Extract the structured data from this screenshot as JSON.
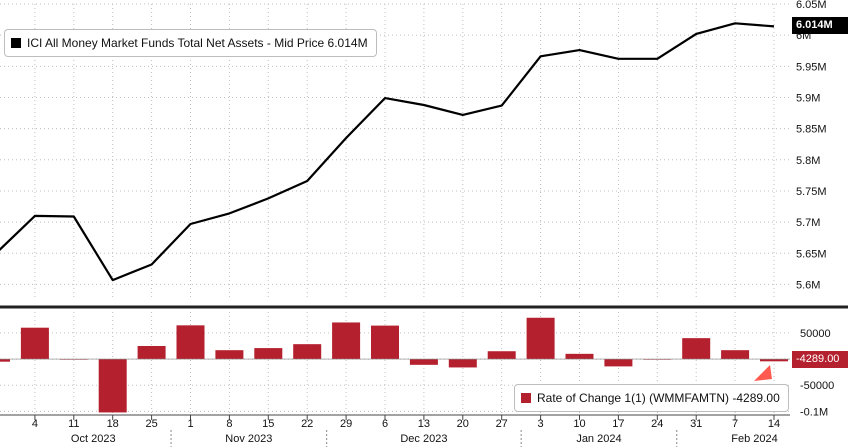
{
  "chart_data": [
    {
      "type": "line",
      "legend_label": "ICI All Money Market Funds Total Net Assets - Mid Price 6.014M",
      "last_value_tag": "6.014M",
      "x": [
        "2023-09-27",
        "2023-10-04",
        "2023-10-11",
        "2023-10-18",
        "2023-10-25",
        "2023-11-01",
        "2023-11-08",
        "2023-11-15",
        "2023-11-22",
        "2023-11-29",
        "2023-12-06",
        "2023-12-13",
        "2023-12-20",
        "2023-12-27",
        "2024-01-03",
        "2024-01-10",
        "2024-01-17",
        "2024-01-24",
        "2024-01-31",
        "2024-02-07",
        "2024-02-14"
      ],
      "values": [
        5.65,
        5.71,
        5.709,
        5.607,
        5.632,
        5.697,
        5.714,
        5.738,
        5.766,
        5.835,
        5.899,
        5.888,
        5.872,
        5.887,
        5.966,
        5.976,
        5.962,
        5.962,
        6.002,
        6.019,
        6.014
      ],
      "ylim": [
        5.575,
        6.05
      ],
      "y_ticks": [
        "5.6M",
        "5.65M",
        "5.7M",
        "5.75M",
        "5.8M",
        "5.85M",
        "5.9M",
        "5.95M",
        "6M",
        "6.05M"
      ],
      "y_tick_values": [
        5.6,
        5.65,
        5.7,
        5.75,
        5.8,
        5.85,
        5.9,
        5.95,
        6.0,
        6.05
      ],
      "grid": true,
      "color": "#000000"
    },
    {
      "type": "bar",
      "legend_label": "Rate of Change 1(1) (WMMFAMTN) -4289.00",
      "last_value_tag": "-4289.00",
      "x": [
        "2023-09-27",
        "2023-10-04",
        "2023-10-11",
        "2023-10-18",
        "2023-10-25",
        "2023-11-01",
        "2023-11-08",
        "2023-11-15",
        "2023-11-22",
        "2023-11-29",
        "2023-12-06",
        "2023-12-13",
        "2023-12-20",
        "2023-12-27",
        "2024-01-03",
        "2024-01-10",
        "2024-01-17",
        "2024-01-24",
        "2024-01-31",
        "2024-02-07",
        "2024-02-14"
      ],
      "values": [
        -5000,
        60000,
        0,
        -102000,
        25000,
        64500,
        17000,
        21000,
        28500,
        70000,
        64000,
        -11000,
        -16000,
        15000,
        79000,
        10000,
        -14000,
        0,
        40000,
        17000,
        -4289
      ],
      "ylim": [
        -105000,
        90000
      ],
      "y_ticks": [
        "50000",
        "0",
        "-50000",
        "-0.1M"
      ],
      "y_tick_values": [
        50000,
        0,
        -50000,
        -100000
      ],
      "grid": true,
      "color": "#b5202e"
    }
  ],
  "x_axis": {
    "day_labels": [
      "4",
      "11",
      "18",
      "25",
      "1",
      "8",
      "15",
      "22",
      "29",
      "6",
      "13",
      "20",
      "27",
      "3",
      "10",
      "17",
      "24",
      "31",
      "7",
      "14"
    ],
    "month_labels": [
      "Oct 2023",
      "Nov 2023",
      "Dec 2023",
      "Jan 2024",
      "Feb 2024"
    ]
  },
  "colors": {
    "line": "#000000",
    "bars": "#b5202e",
    "grid": "#bfbfbf",
    "separator": "#222222"
  }
}
